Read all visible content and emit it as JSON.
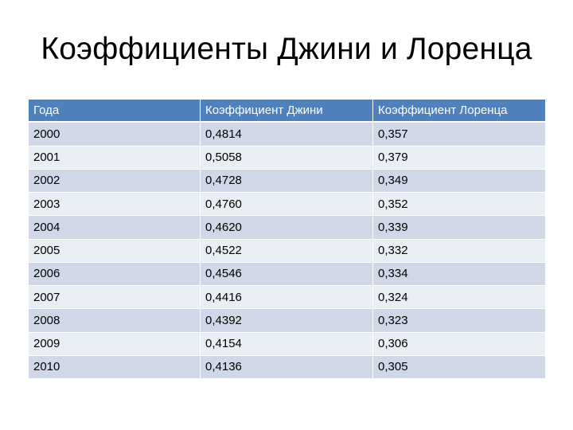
{
  "title": "Коэффициенты Джини и Лоренца",
  "table": {
    "headers": [
      "Года",
      "Коэффициент Джини",
      "Коэффициент Лоренца"
    ],
    "rows": [
      [
        "2000",
        "0,4814",
        "0,357"
      ],
      [
        "2001",
        "0,5058",
        "0,379"
      ],
      [
        "2002",
        "0,4728",
        "0,349"
      ],
      [
        "2003",
        "0,4760",
        "0,352"
      ],
      [
        "2004",
        "0,4620",
        "0,339"
      ],
      [
        "2005",
        "0,4522",
        "0,332"
      ],
      [
        "2006",
        "0,4546",
        "0,334"
      ],
      [
        "2007",
        "0,4416",
        "0,324"
      ],
      [
        "2008",
        "0,4392",
        "0,323"
      ],
      [
        "2009",
        "0,4154",
        "0,306"
      ],
      [
        "2010",
        "0,4136",
        "0,305"
      ]
    ]
  },
  "colors": {
    "header_background": "#4f81bd",
    "band_dark": "#d0d8e8",
    "band_light": "#e9edf4"
  }
}
